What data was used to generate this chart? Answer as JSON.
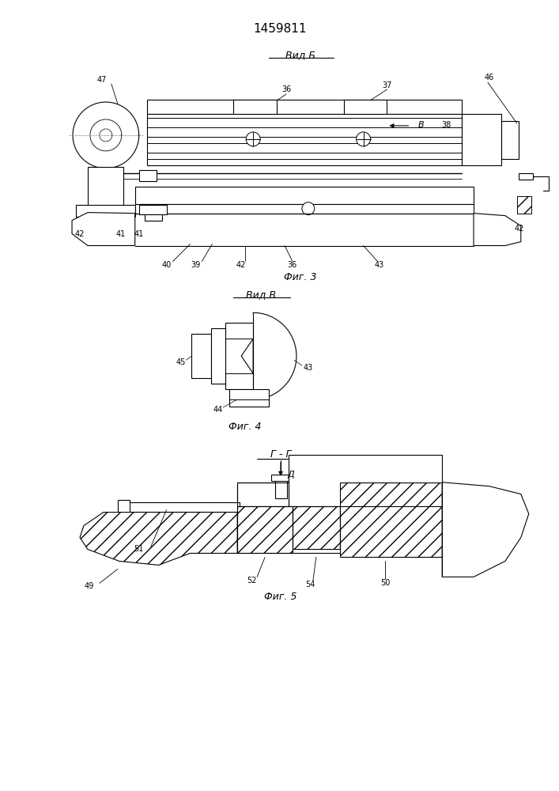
{
  "title": "1459811",
  "bg": "#ffffff",
  "lc": "#000000",
  "fig3_title": "Вид Б",
  "fig3_caption": "Фиг. 3",
  "fig4_title": "Вид В",
  "fig4_caption": "Фиг. 4",
  "fig5_title": "Г - Г",
  "fig5_d": "Д",
  "fig5_caption": "Фиг. 5"
}
